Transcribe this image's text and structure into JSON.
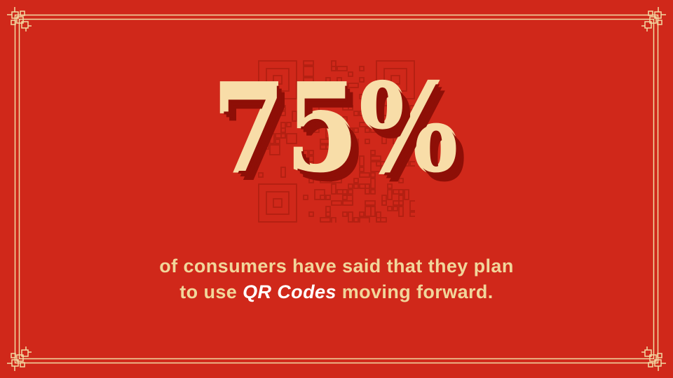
{
  "stat": {
    "value": "75%"
  },
  "caption": {
    "line1": "of consumers have said that they plan",
    "line2_before": "to use ",
    "line2_highlight": "QR Codes",
    "line2_after": " moving forward."
  },
  "decor": {
    "background_pattern_icon": "qr-code-pattern",
    "corner_ornament_icon": "chinese-knot-corner"
  },
  "colors": {
    "background": "#D0281A",
    "border": "#F2DCA4",
    "stat_fill": "#F8DDA8",
    "stat_shadow": "#8E0F07",
    "caption_text": "#F1D69B",
    "caption_highlight": "#FFFFFF",
    "qr_pattern": "#B22012"
  }
}
